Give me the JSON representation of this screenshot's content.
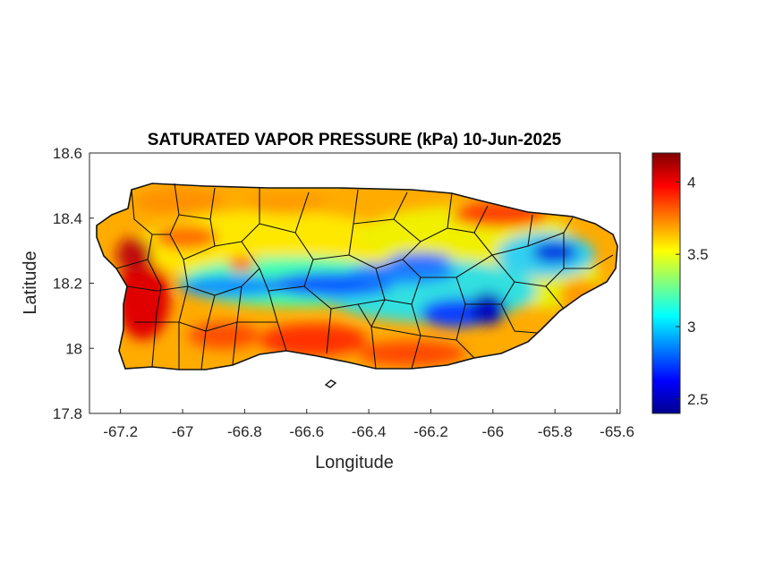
{
  "chart_data": {
    "type": "heatmap",
    "title": "SATURATED VAPOR PRESSURE (kPa) 10-Jun-2025",
    "xlabel": "Longitude",
    "ylabel": "Latitude",
    "xlim": [
      -67.3,
      -65.59
    ],
    "ylim": [
      17.8,
      18.6
    ],
    "x_ticks": [
      -67.2,
      -67,
      -66.8,
      -66.6,
      -66.4,
      -66.2,
      -66,
      -65.8,
      -65.6
    ],
    "x_tick_labels": [
      "-67.2",
      "-67",
      "-66.8",
      "-66.6",
      "-66.4",
      "-66.2",
      "-66",
      "-65.8",
      "-65.6"
    ],
    "y_ticks": [
      17.8,
      18,
      18.2,
      18.4,
      18.6
    ],
    "y_tick_labels": [
      "17.8",
      "18",
      "18.2",
      "18.4",
      "18.6"
    ],
    "colorbar": {
      "colormap": "jet",
      "range": [
        2.4,
        4.2
      ],
      "ticks": [
        2.5,
        3,
        3.5,
        4
      ],
      "tick_labels": [
        "2.5",
        "3",
        "3.5",
        "4"
      ],
      "position": "right"
    },
    "region": "Puerto Rico",
    "pattern": "Low values (~2.5–3.0 kPa) along the central mountain ridge and in the northeast interior near -65.8; high values (~3.8–4.2 kPa) along the west, south and north coasts",
    "grid": false
  }
}
